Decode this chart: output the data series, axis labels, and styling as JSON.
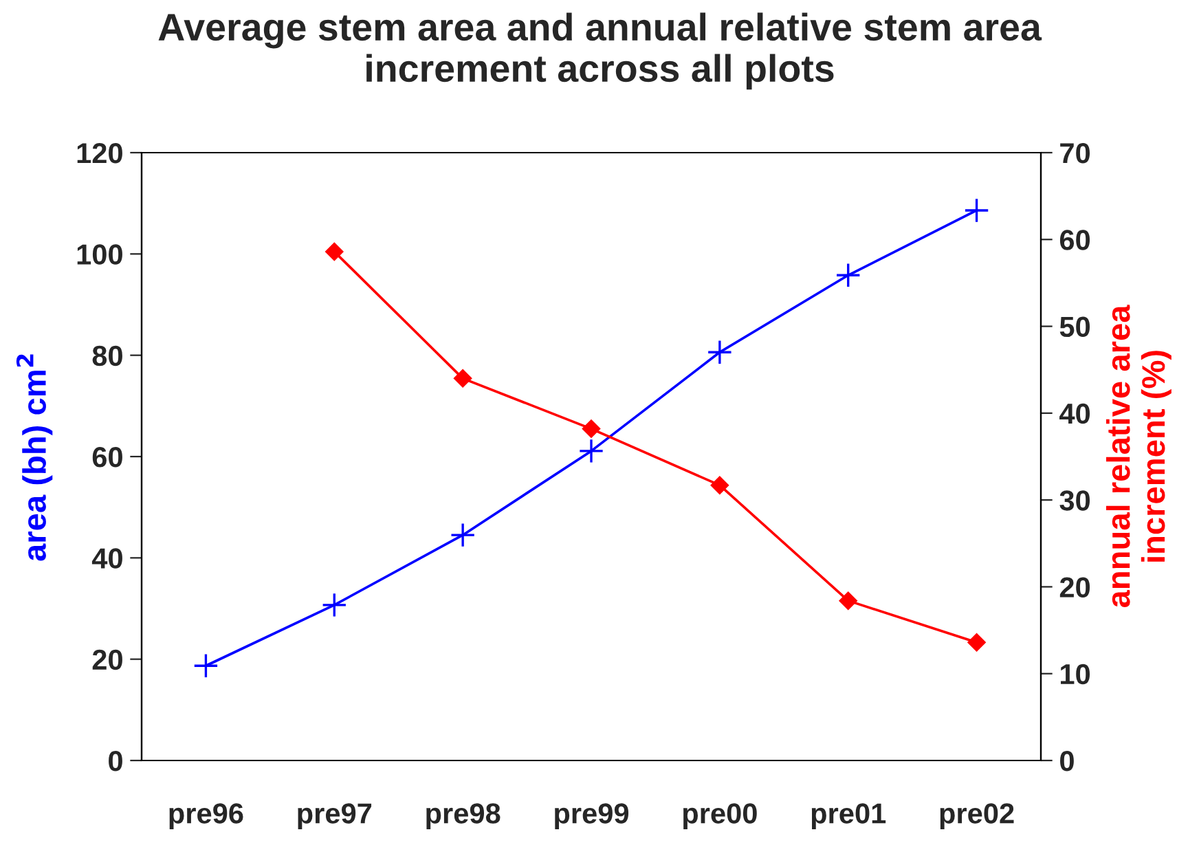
{
  "chart_data": {
    "type": "line",
    "title": "Average stem area and annual relative stem area\nincrement across all plots",
    "ylabel": "area (bh) cm$^{2}$",
    "y2label": "annual relative area\nincrement (%)",
    "categories": [
      "pre96",
      "pre97",
      "pre98",
      "pre99",
      "pre00",
      "pre01",
      "pre02"
    ],
    "series": [
      {
        "color": "#0000ff",
        "marker": "cross",
        "values": [
          18.7,
          30.7,
          44.5,
          61.1,
          80.6,
          95.8,
          108.6
        ]
      },
      {
        "color": "#ff0000",
        "marker": "diamond",
        "axis": "y2",
        "values": [
          null,
          58.6,
          44.0,
          38.2,
          31.7,
          18.4,
          13.6
        ]
      }
    ],
    "ylim": [
      0,
      120
    ],
    "yticks": [
      0,
      20,
      40,
      60,
      80,
      100,
      120
    ],
    "y2lim": [
      0,
      70
    ],
    "y2ticks": [
      0,
      10,
      20,
      30,
      40,
      50,
      60,
      70
    ],
    "grid": false,
    "legend": false,
    "line_style": "solid"
  }
}
